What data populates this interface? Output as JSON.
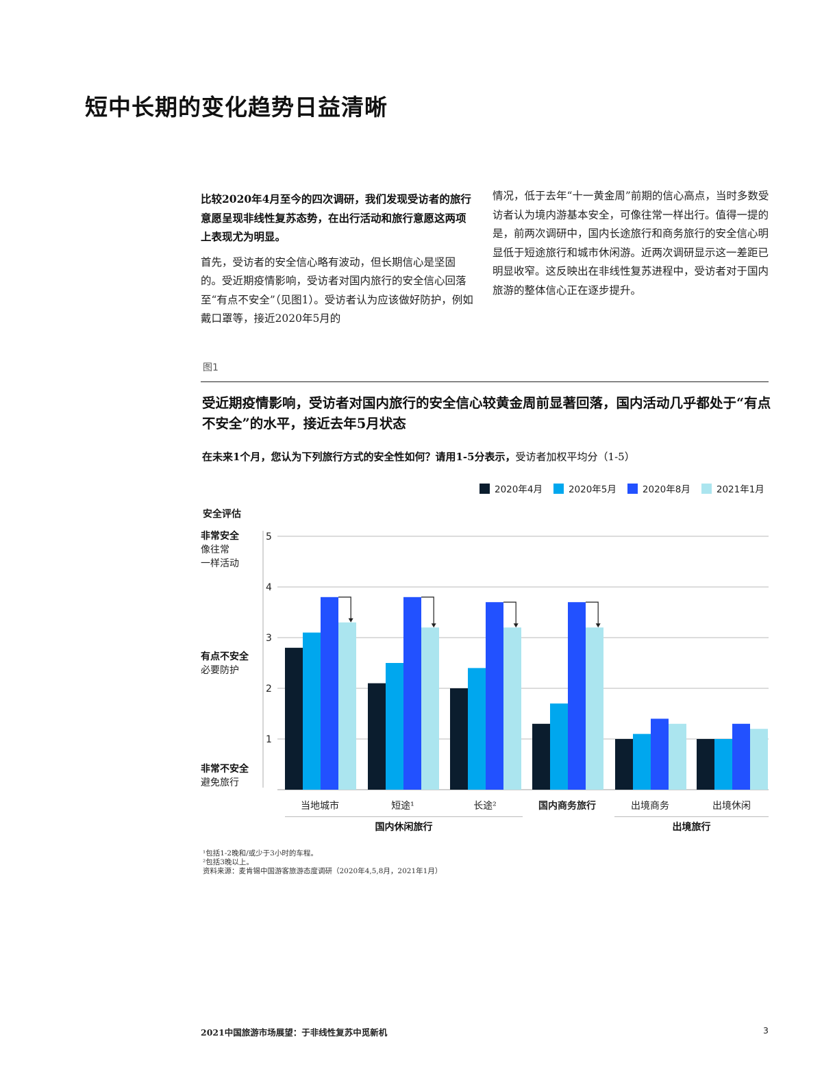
{
  "page": {
    "title": "短中长期的变化趋势日益清晰",
    "left_column": {
      "lead": "比较2020年4月至今的四次调研，我们发现受访者的旅行意愿呈现非线性复苏态势，在出行活动和旅行意愿这两项上表现尤为明显。",
      "paragraph": "首先，受访者的安全信心略有波动，但长期信心是坚固的。受近期疫情影响，受访者对国内旅行的安全信心回落至“有点不安全”（见图1）。受访者认为应该做好防护，例如戴口罩等，接近2020年5月的"
    },
    "right_column": {
      "paragraph": "情况，低于去年“十一黄金周”前期的信心高点，当时多数受访者认为境内游基本安全，可像往常一样出行。值得一提的是，前两次调研中，国内长途旅行和商务旅行的安全信心明显低于短途旅行和城市休闲游。近两次调研显示这一差距已明显收窄。这反映出在非线性复苏进程中，受访者对于国内旅游的整体信心正在逐步提升。"
    },
    "footer": {
      "title": "2021中国旅游市场展望：于非线性复苏中觅新机",
      "page_number": "3"
    }
  },
  "figure": {
    "label": "图1",
    "title": "受近期疫情影响，受访者对国内旅行的安全信心较黄金周前显著回落，国内活动几乎都处于“有点不安全”的水平，接近去年5月状态",
    "subtitle_bold": "在未来1个月，您认为下列旅行方式的安全性如何？请用1-5分表示，",
    "subtitle_regular": "受访者加权平均分（1-5）",
    "y_axis_title": "安全评估",
    "y_annotations": [
      {
        "bold": "非常安全",
        "lines": [
          "像往常",
          "一样活动"
        ]
      },
      {
        "bold": "有点不安全",
        "lines": [
          "必要防护"
        ]
      },
      {
        "bold": "非常不安全",
        "lines": [
          "避免旅行"
        ]
      }
    ],
    "footnotes": [
      "¹包括1-2晚和/或少于3小时的车程。",
      "²包括3晚以上。",
      "资料来源：麦肯锡中国游客旅游态度调研（2020年4,5,8月，2021年1月）"
    ],
    "groups": [
      {
        "label": "国内休闲旅行"
      },
      {
        "label": "出境旅行"
      }
    ]
  },
  "chart_data": {
    "type": "bar",
    "title": "受近期疫情影响，受访者对国内旅行的安全信心较黄金周前显著回落，国内活动几乎都处于“有点不安全”的水平，接近去年5月状态",
    "subtitle": "在未来1个月，您认为下列旅行方式的安全性如何？请用1-5分表示，受访者加权平均分（1-5）",
    "xlabel": "",
    "ylabel": "安全评估",
    "ylim": [
      0,
      5
    ],
    "yticks": [
      1,
      2,
      3,
      4,
      5
    ],
    "grid": true,
    "legend_position": "top-right",
    "categories": [
      "当地城市",
      "短途¹",
      "长途²",
      "国内商务旅行",
      "出境商务",
      "出境休闲"
    ],
    "category_groups": [
      {
        "label": "国内休闲旅行",
        "categories": [
          "当地城市",
          "短途¹",
          "长途²"
        ]
      },
      {
        "label": "出境旅行",
        "categories": [
          "出境商务",
          "出境休闲"
        ]
      }
    ],
    "series": [
      {
        "name": "2020年4月",
        "color": "#0b1d2e",
        "values": [
          2.8,
          2.1,
          2.0,
          1.3,
          1.0,
          1.0
        ]
      },
      {
        "name": "2020年5月",
        "color": "#00a7ee",
        "values": [
          3.1,
          2.5,
          2.4,
          1.7,
          1.1,
          1.0
        ]
      },
      {
        "name": "2020年8月",
        "color": "#2251ff",
        "values": [
          3.8,
          3.8,
          3.7,
          3.7,
          1.4,
          1.3
        ]
      },
      {
        "name": "2021年1月",
        "color": "#abe5ef",
        "values": [
          3.3,
          3.2,
          3.2,
          3.2,
          1.3,
          1.2
        ]
      }
    ],
    "annotations": [
      {
        "type": "arrow",
        "from_series": "2020年8月",
        "to_series": "2021年1月",
        "categories": [
          "当地城市",
          "短途¹",
          "长途²",
          "国内商务旅行"
        ]
      }
    ],
    "y_annotations": [
      "非常安全 像往常一样活动 (5)",
      "有点不安全 必要防护 (~2.7)",
      "非常不安全 避免旅行 (~0.4)"
    ]
  }
}
